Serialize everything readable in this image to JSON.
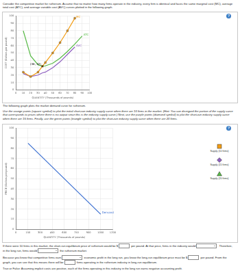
{
  "intro": "Consider the competitive market for rutherium. Assume that no matter how many firms operate in the industry, every firm is identical and faces the same marginal cost (MC), average total cost (ATC), and average variable cost (AVC) curves plotted in the following graph.",
  "help": "?",
  "chart_data": [
    {
      "type": "line",
      "xlabel": "QUANTITY (Thousands of pounds)",
      "ylabel": "COST (Dollars per pound)",
      "x": [
        10,
        20,
        30,
        36,
        40,
        50,
        60,
        70,
        80,
        90
      ],
      "series": [
        {
          "name": "MC",
          "color": "#f39c12",
          "marker": "square",
          "values": [
            24,
            18,
            24,
            32,
            37,
            50,
            64,
            80,
            97,
            null
          ]
        },
        {
          "name": "ATC",
          "color": "#58b947",
          "marker": "none",
          "values": [
            80,
            46,
            34,
            32,
            32.5,
            36,
            43,
            52,
            62,
            73
          ]
        },
        {
          "name": "AVC",
          "color": "#8e5fbf",
          "marker": "none",
          "values": [
            22,
            18,
            20,
            23,
            24,
            30,
            38,
            48,
            58,
            null
          ]
        }
      ],
      "xlim": [
        0,
        100
      ],
      "xticks": [
        0,
        10,
        20,
        30,
        40,
        50,
        60,
        70,
        80,
        90,
        100
      ],
      "ylim": [
        0,
        100
      ],
      "yticks": [
        0,
        10,
        20,
        30,
        40,
        50,
        60,
        70,
        80,
        90,
        100
      ],
      "grid": true,
      "annotations": [
        {
          "text": "(36, 32)",
          "x": 36,
          "y": 32
        }
      ]
    },
    {
      "type": "line",
      "xlabel": "QUANTITY (Thousands of pounds)",
      "ylabel": "PRICE (Dollars per pound)",
      "x": [
        150,
        1050
      ],
      "series": [
        {
          "name": "Demand",
          "color": "#3b6fd1",
          "marker": "none",
          "values": [
            85,
            15
          ]
        }
      ],
      "xlim": [
        0,
        1200
      ],
      "xticks": [
        0,
        150,
        300,
        450,
        600,
        750,
        900,
        1050,
        1200
      ],
      "ylim": [
        0,
        100
      ],
      "yticks": [
        0,
        10,
        20,
        30,
        40,
        50,
        60,
        70,
        80,
        90,
        100
      ],
      "grid": true,
      "palette": [
        {
          "name": "Supply (10 firms)",
          "color": "#f39c12",
          "marker": "square"
        },
        {
          "name": "Supply (15 firms)",
          "color": "#8e5fbf",
          "marker": "diamond"
        },
        {
          "name": "Supply (20 firms)",
          "color": "#58b947",
          "marker": "triangle"
        }
      ]
    }
  ],
  "between": "The following graph plots the market demand curve for rutherium.",
  "instructions": "Use the orange points (square symbol) to plot the initial short-run industry supply curve when there are 10 firms in the market. (Hint: You can disregard the portion of the supply curve that corresponds to prices where there is no output since this is the industry supply curve.) Next, use the purple points (diamond symbol) to plot the short-run industry supply curve when there are 15 firms. Finally, use the green points (triangle symbol) to plot the short-run industry supply curve when there are 20 firms.",
  "questions": [
    [
      "If there were 10 firms in this market, the short-run equilibrium price of rutherium would be $",
      {
        "field": "input"
      },
      " per pound. At that price, firms in the industry would",
      {
        "field": "select"
      },
      ". Therefore, in the long run, firms would",
      {
        "field": "select"
      },
      " the rutherium market."
    ],
    [
      "Because you know that competitive firms earn",
      {
        "field": "select"
      },
      " economic profit in the long run, you know the long-run equilibrium price must be $",
      {
        "field": "input"
      },
      " per pound. From the graph, you can see that this means there will be",
      {
        "field": "input"
      },
      " firms operating in the rutherium industry in long-run equilibrium."
    ],
    [
      "True or False: Assuming implicit costs are positive, each of the firms operating in this industry in the long run earns negative accounting profit."
    ]
  ]
}
